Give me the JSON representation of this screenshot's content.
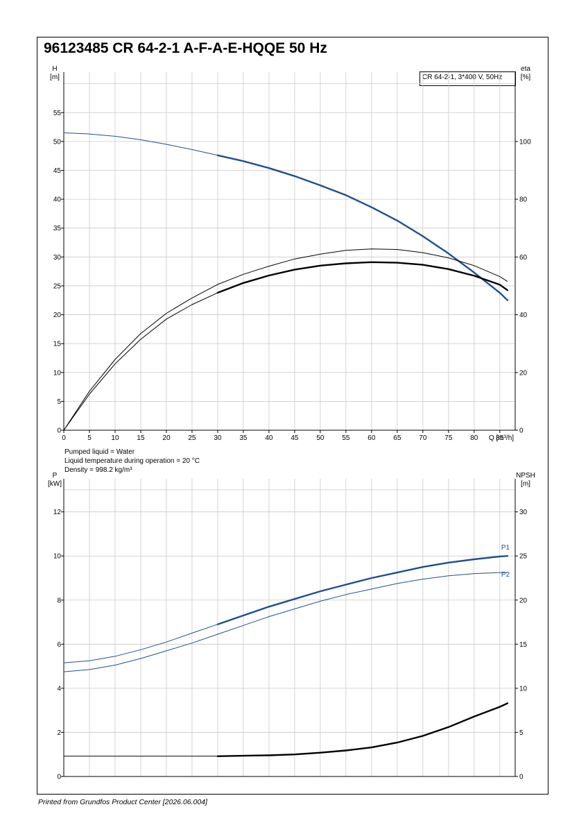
{
  "title": "96123485 CR 64-2-1 A-F-A-E-HQQE 50 Hz",
  "footer": "Printed from Grundfos Product Center [2026.06.004]",
  "liquid_info": [
    "Pumped liquid = Water",
    "Liquid temperature during operation = 20 °C",
    "Density = 998.2 kg/m³"
  ],
  "legend_box": "CR 64-2-1, 3*400 V, 50Hz",
  "colors": {
    "blue": "#1f4e8c",
    "black": "#000000",
    "grid": "#c8c8c8"
  },
  "chart_data": [
    {
      "type": "line",
      "name": "upper",
      "xlabel": "Q [m³/h]",
      "ylabel_left_top": "H",
      "ylabel_left_unit": "[m]",
      "ylabel_right_top": "eta",
      "ylabel_right_unit": "[%]",
      "xlim": [
        0,
        88
      ],
      "ylim": [
        0,
        62
      ],
      "y2lim": [
        0,
        124
      ],
      "x_ticks": [
        0,
        5,
        10,
        15,
        20,
        25,
        30,
        35,
        40,
        45,
        50,
        55,
        60,
        65,
        70,
        75,
        80,
        85
      ],
      "y_ticks": [
        0,
        5,
        10,
        15,
        20,
        25,
        30,
        35,
        40,
        45,
        50,
        55
      ],
      "y2_ticks": [
        0,
        20,
        40,
        60,
        80,
        100
      ],
      "grid": true,
      "series": [
        {
          "axis": "left",
          "style": "blue",
          "bold_from": 30,
          "x": [
            0,
            5,
            10,
            15,
            20,
            25,
            30,
            35,
            40,
            45,
            50,
            55,
            60,
            65,
            70,
            75,
            80,
            85,
            86.5
          ],
          "y": [
            51.5,
            51.3,
            50.9,
            50.3,
            49.5,
            48.6,
            47.6,
            46.6,
            45.4,
            44.0,
            42.4,
            40.7,
            38.6,
            36.3,
            33.6,
            30.6,
            27.3,
            23.8,
            22.5
          ]
        },
        {
          "axis": "right",
          "style": "black-thin",
          "x": [
            0,
            5,
            10,
            15,
            20,
            25,
            30,
            35,
            40,
            45,
            50,
            55,
            60,
            65,
            70,
            75,
            80,
            85,
            86.5
          ],
          "y": [
            0,
            13.5,
            24.5,
            33.5,
            40.5,
            45.8,
            50.5,
            54,
            56.8,
            59.3,
            61,
            62.3,
            62.8,
            62.6,
            61.5,
            59.7,
            57,
            53.2,
            51.5
          ]
        },
        {
          "axis": "right",
          "style": "black",
          "bold_from": 30,
          "x": [
            0,
            5,
            10,
            15,
            20,
            25,
            30,
            35,
            40,
            45,
            50,
            55,
            60,
            65,
            70,
            75,
            80,
            85,
            86.5
          ],
          "y": [
            0,
            12.5,
            23,
            31.5,
            38.5,
            43.5,
            47.6,
            51,
            53.6,
            55.6,
            57,
            57.8,
            58.2,
            58,
            57.3,
            55.8,
            53.5,
            50.4,
            48.5
          ]
        }
      ]
    },
    {
      "type": "line",
      "name": "lower",
      "ylabel_left_top": "P",
      "ylabel_left_unit": "[kW]",
      "ylabel_right_top": "NPSH",
      "ylabel_right_unit": "[m]",
      "xlim": [
        0,
        88
      ],
      "ylim": [
        0,
        13.5
      ],
      "y2lim": [
        0,
        33.75
      ],
      "y_ticks": [
        0,
        2,
        4,
        6,
        8,
        10,
        12
      ],
      "y2_ticks": [
        0,
        5,
        10,
        15,
        20,
        25,
        30
      ],
      "grid": true,
      "series": [
        {
          "name": "P1",
          "axis": "left",
          "style": "blue",
          "bold_from": 30,
          "x": [
            0,
            5,
            10,
            15,
            20,
            25,
            30,
            35,
            40,
            45,
            50,
            55,
            60,
            65,
            70,
            75,
            80,
            85,
            86.5
          ],
          "y": [
            5.15,
            5.25,
            5.45,
            5.75,
            6.1,
            6.5,
            6.9,
            7.3,
            7.7,
            8.05,
            8.4,
            8.7,
            9.0,
            9.25,
            9.5,
            9.7,
            9.85,
            9.98,
            10.0
          ]
        },
        {
          "name": "P2",
          "axis": "left",
          "style": "blue-thin",
          "x": [
            0,
            5,
            10,
            15,
            20,
            25,
            30,
            35,
            40,
            45,
            50,
            55,
            60,
            65,
            70,
            75,
            80,
            85,
            86.5
          ],
          "y": [
            4.75,
            4.85,
            5.05,
            5.35,
            5.7,
            6.05,
            6.45,
            6.85,
            7.25,
            7.6,
            7.95,
            8.25,
            8.5,
            8.75,
            8.95,
            9.1,
            9.2,
            9.25,
            9.25
          ]
        },
        {
          "name": "NPSH",
          "axis": "right",
          "style": "black",
          "bold_from": 30,
          "x": [
            0,
            30,
            35,
            40,
            45,
            50,
            55,
            60,
            65,
            70,
            75,
            80,
            85,
            86.5
          ],
          "y": [
            2.3,
            2.3,
            2.35,
            2.4,
            2.5,
            2.7,
            2.95,
            3.3,
            3.85,
            4.6,
            5.6,
            6.8,
            7.9,
            8.3
          ]
        }
      ],
      "labels": [
        "P1",
        "P2"
      ]
    }
  ]
}
